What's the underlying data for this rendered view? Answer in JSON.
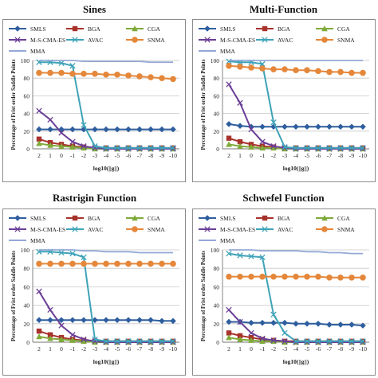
{
  "legend_labels": [
    "SMLS",
    "BGA",
    "CGA",
    "M-S-CMA-ES",
    "AVAC",
    "SNMA",
    "MMA"
  ],
  "series_colors": {
    "SMLS": "#2e5e9e",
    "BGA": "#a8322b",
    "CGA": "#7faa3a",
    "M-S-CMA-ES": "#6a3f96",
    "AVAC": "#3fa3b8",
    "SNMA": "#e5873a",
    "MMA": "#93a9d6"
  },
  "series_markers": {
    "SMLS": "diamond",
    "BGA": "square",
    "CGA": "triangle",
    "M-S-CMA-ES": "x",
    "AVAC": "x",
    "SNMA": "circle",
    "MMA": "none"
  },
  "chart_data": [
    {
      "type": "line",
      "title": "Sines",
      "ylabel": "Percentage of Frist order Saddle Points",
      "xlabel": "log10(||g||)",
      "x": [
        "2",
        "1",
        "0",
        "-1",
        "-2",
        "-3",
        "-4",
        "-5",
        "-6",
        "-7",
        "-8",
        "-9",
        "-10"
      ],
      "ylim": [
        0,
        100
      ],
      "yticks": [
        0,
        20,
        40,
        60,
        80,
        100
      ],
      "grid": true,
      "legend": "top",
      "series": [
        {
          "name": "SMLS",
          "values": [
            22,
            22,
            22,
            22,
            22,
            22,
            22,
            22,
            22,
            22,
            22,
            22,
            22
          ]
        },
        {
          "name": "BGA",
          "values": [
            11,
            7,
            5,
            3,
            2,
            1,
            1,
            1,
            1,
            1,
            1,
            1,
            1
          ]
        },
        {
          "name": "CGA",
          "values": [
            6,
            4,
            3,
            2,
            1,
            0,
            0,
            0,
            0,
            0,
            0,
            0,
            0
          ]
        },
        {
          "name": "M-S-CMA-ES",
          "values": [
            43,
            33,
            18,
            8,
            3,
            1,
            0,
            0,
            0,
            0,
            0,
            0,
            0
          ]
        },
        {
          "name": "AVAC",
          "values": [
            98,
            98,
            97,
            94,
            27,
            3,
            1,
            1,
            1,
            1,
            1,
            1,
            1
          ]
        },
        {
          "name": "SNMA",
          "values": [
            86,
            86,
            86,
            85,
            85,
            85,
            84,
            84,
            83,
            82,
            81,
            80,
            79
          ]
        },
        {
          "name": "MMA",
          "values": [
            100,
            100,
            100,
            100,
            99,
            99,
            99,
            99,
            99,
            99,
            98,
            98,
            98
          ]
        }
      ]
    },
    {
      "type": "line",
      "title": "Multi-Function",
      "ylabel": "Percentage of Frist order Saddle Points",
      "xlabel": "log10(||g||)",
      "x": [
        "2",
        "1",
        "0",
        "-1",
        "-2",
        "-3",
        "-4",
        "-5",
        "-6",
        "-7",
        "-8",
        "-9",
        "-10"
      ],
      "ylim": [
        0,
        100
      ],
      "yticks": [
        0,
        20,
        40,
        60,
        80,
        100
      ],
      "grid": true,
      "legend": "top",
      "series": [
        {
          "name": "SMLS",
          "values": [
            28,
            26,
            25,
            25,
            25,
            25,
            25,
            25,
            25,
            25,
            25,
            25,
            25
          ]
        },
        {
          "name": "BGA",
          "values": [
            12,
            8,
            5,
            3,
            2,
            1,
            1,
            1,
            1,
            1,
            1,
            1,
            1
          ]
        },
        {
          "name": "CGA",
          "values": [
            5,
            3,
            2,
            1,
            1,
            0,
            0,
            0,
            0,
            0,
            0,
            0,
            0
          ]
        },
        {
          "name": "M-S-CMA-ES",
          "values": [
            73,
            52,
            22,
            8,
            3,
            1,
            0,
            0,
            0,
            0,
            0,
            0,
            0
          ]
        },
        {
          "name": "AVAC",
          "values": [
            99,
            98,
            98,
            96,
            30,
            2,
            1,
            1,
            1,
            1,
            1,
            1,
            1
          ]
        },
        {
          "name": "SNMA",
          "values": [
            94,
            93,
            92,
            91,
            90,
            90,
            89,
            89,
            88,
            87,
            87,
            86,
            86
          ]
        },
        {
          "name": "MMA",
          "values": [
            100,
            100,
            100,
            100,
            100,
            100,
            100,
            100,
            100,
            100,
            100,
            100,
            100
          ]
        }
      ]
    },
    {
      "type": "line",
      "title": "Rastrigin Function",
      "ylabel": "Percentage of Frist order Saddle Points",
      "xlabel": "log10(||g||)",
      "x": [
        "2",
        "1",
        "0",
        "-1",
        "-2",
        "-3",
        "-4",
        "-5",
        "-6",
        "-7",
        "-8",
        "-9",
        "-10"
      ],
      "ylim": [
        0,
        100
      ],
      "yticks": [
        0,
        20,
        40,
        60,
        80,
        100
      ],
      "grid": true,
      "legend": "top",
      "series": [
        {
          "name": "SMLS",
          "values": [
            24,
            24,
            24,
            24,
            24,
            24,
            24,
            24,
            24,
            24,
            24,
            23,
            23
          ]
        },
        {
          "name": "BGA",
          "values": [
            12,
            8,
            5,
            3,
            2,
            1,
            1,
            1,
            1,
            1,
            1,
            1,
            1
          ]
        },
        {
          "name": "CGA",
          "values": [
            6,
            4,
            3,
            2,
            1,
            0,
            0,
            0,
            0,
            0,
            0,
            0,
            0
          ]
        },
        {
          "name": "M-S-CMA-ES",
          "values": [
            55,
            35,
            18,
            8,
            3,
            1,
            0,
            0,
            0,
            0,
            0,
            0,
            0
          ]
        },
        {
          "name": "AVAC",
          "values": [
            98,
            98,
            97,
            96,
            92,
            3,
            1,
            1,
            1,
            1,
            1,
            1,
            1
          ]
        },
        {
          "name": "SNMA",
          "values": [
            85,
            85,
            85,
            85,
            85,
            85,
            85,
            85,
            85,
            85,
            85,
            85,
            85
          ]
        },
        {
          "name": "MMA",
          "values": [
            100,
            100,
            100,
            100,
            99,
            99,
            98,
            98,
            98,
            97,
            97,
            97,
            97
          ]
        }
      ]
    },
    {
      "type": "line",
      "title": "Schwefel Function",
      "ylabel": "Percentage of Frist order Saddle Points",
      "xlabel": "log10(||g||)",
      "x": [
        "2",
        "1",
        "0",
        "-1",
        "-2",
        "-3",
        "-4",
        "-5",
        "-6",
        "-7",
        "-8",
        "-9",
        "-10"
      ],
      "ylim": [
        0,
        100
      ],
      "yticks": [
        0,
        20,
        40,
        60,
        80,
        100
      ],
      "grid": true,
      "legend": "top",
      "series": [
        {
          "name": "SMLS",
          "values": [
            22,
            22,
            21,
            21,
            21,
            21,
            20,
            20,
            20,
            19,
            19,
            19,
            18
          ]
        },
        {
          "name": "BGA",
          "values": [
            10,
            7,
            5,
            3,
            2,
            1,
            1,
            1,
            1,
            1,
            1,
            1,
            1
          ]
        },
        {
          "name": "CGA",
          "values": [
            5,
            3,
            2,
            1,
            1,
            0,
            0,
            0,
            0,
            0,
            0,
            0,
            0
          ]
        },
        {
          "name": "M-S-CMA-ES",
          "values": [
            35,
            22,
            10,
            4,
            2,
            1,
            0,
            0,
            0,
            0,
            0,
            0,
            0
          ]
        },
        {
          "name": "AVAC",
          "values": [
            96,
            94,
            93,
            92,
            30,
            10,
            1,
            1,
            1,
            1,
            1,
            1,
            1
          ]
        },
        {
          "name": "SNMA",
          "values": [
            71,
            71,
            71,
            71,
            71,
            71,
            71,
            71,
            71,
            70,
            70,
            70,
            70
          ]
        },
        {
          "name": "MMA",
          "values": [
            100,
            100,
            100,
            99,
            99,
            99,
            99,
            98,
            98,
            97,
            97,
            96,
            96
          ]
        }
      ]
    }
  ]
}
